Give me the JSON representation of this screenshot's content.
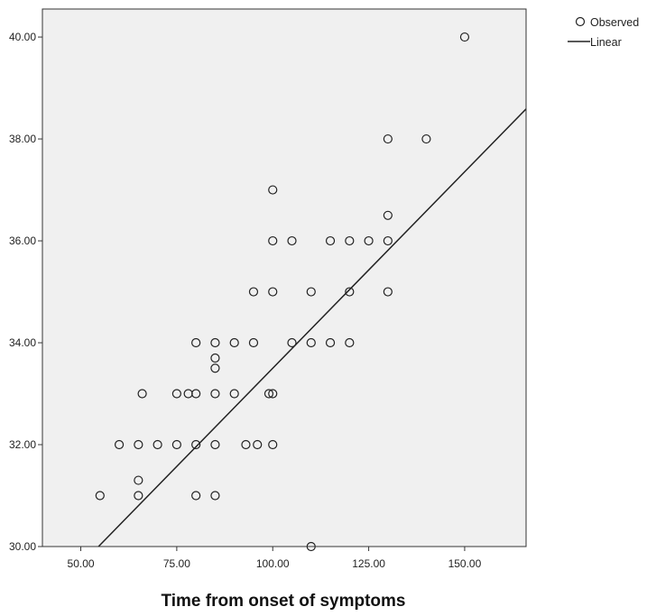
{
  "chart_data": {
    "type": "scatter",
    "title": "",
    "xlabel": "Time from onset of symptoms",
    "ylabel": "",
    "xlim": [
      40,
      166
    ],
    "ylim": [
      30,
      40.55
    ],
    "xticks": [
      50,
      75,
      100,
      125,
      150
    ],
    "xtick_labels": [
      "50.00",
      "75.00",
      "100.00",
      "125.00",
      "150.00"
    ],
    "yticks": [
      30,
      32,
      34,
      36,
      38,
      40
    ],
    "ytick_labels": [
      "30.00",
      "32.00",
      "34.00",
      "36.00",
      "38.00",
      "40.00"
    ],
    "grid": false,
    "plot_background": "#f0f0f0",
    "legend_position": "top-right, outside plot",
    "legend": [
      {
        "label": "Observed",
        "symbol": "circle"
      },
      {
        "label": "Linear",
        "symbol": "line"
      }
    ],
    "observed": [
      {
        "x": 150,
        "y": 40
      },
      {
        "x": 130,
        "y": 38
      },
      {
        "x": 140,
        "y": 38
      },
      {
        "x": 100,
        "y": 37
      },
      {
        "x": 130,
        "y": 36.5
      },
      {
        "x": 100,
        "y": 36
      },
      {
        "x": 105,
        "y": 36
      },
      {
        "x": 115,
        "y": 36
      },
      {
        "x": 120,
        "y": 36
      },
      {
        "x": 125,
        "y": 36
      },
      {
        "x": 130,
        "y": 36
      },
      {
        "x": 95,
        "y": 35
      },
      {
        "x": 100,
        "y": 35
      },
      {
        "x": 110,
        "y": 35
      },
      {
        "x": 120,
        "y": 35
      },
      {
        "x": 130,
        "y": 35
      },
      {
        "x": 80,
        "y": 34
      },
      {
        "x": 85,
        "y": 34
      },
      {
        "x": 90,
        "y": 34
      },
      {
        "x": 95,
        "y": 34
      },
      {
        "x": 105,
        "y": 34
      },
      {
        "x": 110,
        "y": 34
      },
      {
        "x": 115,
        "y": 34
      },
      {
        "x": 120,
        "y": 34
      },
      {
        "x": 85,
        "y": 33.7
      },
      {
        "x": 85,
        "y": 33.5
      },
      {
        "x": 66,
        "y": 33
      },
      {
        "x": 75,
        "y": 33
      },
      {
        "x": 78,
        "y": 33
      },
      {
        "x": 80,
        "y": 33
      },
      {
        "x": 85,
        "y": 33
      },
      {
        "x": 90,
        "y": 33
      },
      {
        "x": 99,
        "y": 33
      },
      {
        "x": 100,
        "y": 33
      },
      {
        "x": 60,
        "y": 32
      },
      {
        "x": 65,
        "y": 32
      },
      {
        "x": 70,
        "y": 32
      },
      {
        "x": 75,
        "y": 32
      },
      {
        "x": 80,
        "y": 32
      },
      {
        "x": 85,
        "y": 32
      },
      {
        "x": 93,
        "y": 32
      },
      {
        "x": 96,
        "y": 32
      },
      {
        "x": 100,
        "y": 32
      },
      {
        "x": 65,
        "y": 31.3
      },
      {
        "x": 55,
        "y": 31
      },
      {
        "x": 65,
        "y": 31
      },
      {
        "x": 80,
        "y": 31
      },
      {
        "x": 85,
        "y": 31
      },
      {
        "x": 110,
        "y": 30
      }
    ],
    "linear_fit": {
      "intercept": 25.79,
      "slope": 0.0771,
      "x_start": 40,
      "x_end": 166
    }
  }
}
